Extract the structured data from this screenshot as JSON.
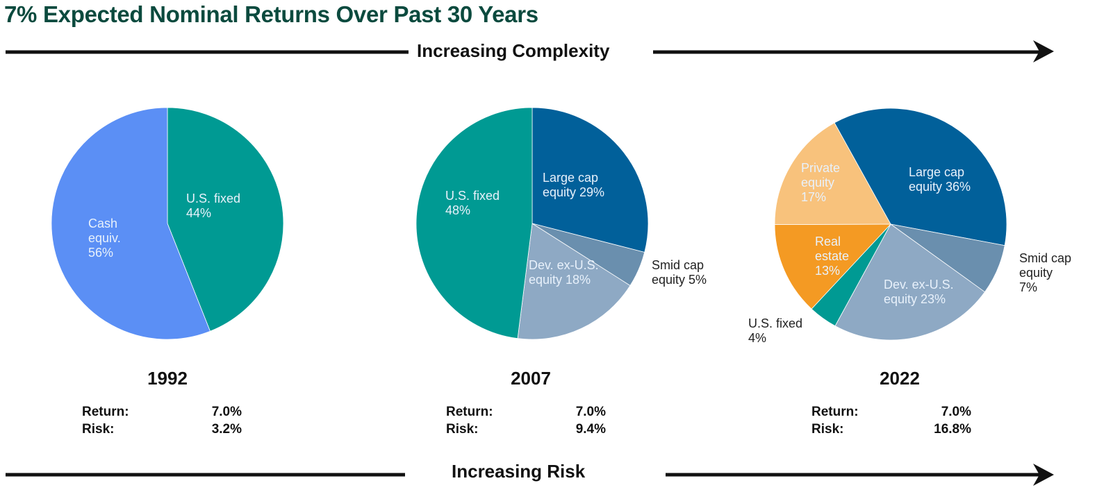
{
  "header": {
    "title": "7% Expected Nominal Returns Over Past 30 Years",
    "top_arrow_label": "Increasing Complexity",
    "bottom_arrow_label": "Increasing Risk"
  },
  "stat_labels": {
    "return": "Return:",
    "risk": "Risk:"
  },
  "colors": {
    "cash": "#5b8ff5",
    "us_fixed": "#009a93",
    "large_cap": "#01609a",
    "smid_cap": "#6a8fae",
    "dev_ex_us": "#8ea9c4",
    "real_estate": "#f49a23",
    "private_equity": "#f8c27c",
    "title": "#0b4a3e"
  },
  "chart_data": [
    {
      "type": "pie",
      "title": "1992",
      "return": "7.0%",
      "risk": "3.2%",
      "slices": [
        {
          "key": "us_fixed",
          "label": [
            "U.S. fixed",
            "44%"
          ],
          "value": 44,
          "label_inside": true
        },
        {
          "key": "cash",
          "label": [
            "Cash",
            "equiv.",
            "56%"
          ],
          "value": 56,
          "label_inside": true
        }
      ]
    },
    {
      "type": "pie",
      "title": "2007",
      "return": "7.0%",
      "risk": "9.4%",
      "slices": [
        {
          "key": "large_cap",
          "label": [
            "Large cap",
            "equity 29%"
          ],
          "value": 29,
          "label_inside": true
        },
        {
          "key": "smid_cap",
          "label": [
            "Smid cap",
            "equity 5%"
          ],
          "value": 5,
          "label_inside": false
        },
        {
          "key": "dev_ex_us",
          "label": [
            "Dev. ex-U.S.",
            "equity 18%"
          ],
          "value": 18,
          "label_inside": true
        },
        {
          "key": "us_fixed",
          "label": [
            "U.S. fixed",
            "48%"
          ],
          "value": 48,
          "label_inside": true
        }
      ]
    },
    {
      "type": "pie",
      "title": "2022",
      "return": "7.0%",
      "risk": "16.8%",
      "slices": [
        {
          "key": "large_cap",
          "label": [
            "Large cap",
            "equity 36%"
          ],
          "value": 36,
          "label_inside": true
        },
        {
          "key": "smid_cap",
          "label": [
            "Smid cap",
            "equity",
            "7%"
          ],
          "value": 7,
          "label_inside": false
        },
        {
          "key": "dev_ex_us",
          "label": [
            "Dev. ex-U.S.",
            "equity 23%"
          ],
          "value": 23,
          "label_inside": true
        },
        {
          "key": "us_fixed",
          "label": [
            "U.S. fixed",
            "4%"
          ],
          "value": 4,
          "label_inside": false
        },
        {
          "key": "real_estate",
          "label": [
            "Real",
            "estate",
            "13%"
          ],
          "value": 13,
          "label_inside": true
        },
        {
          "key": "private_equity",
          "label": [
            "Private",
            "equity",
            "17%"
          ],
          "value": 17,
          "label_inside": true
        }
      ]
    }
  ]
}
